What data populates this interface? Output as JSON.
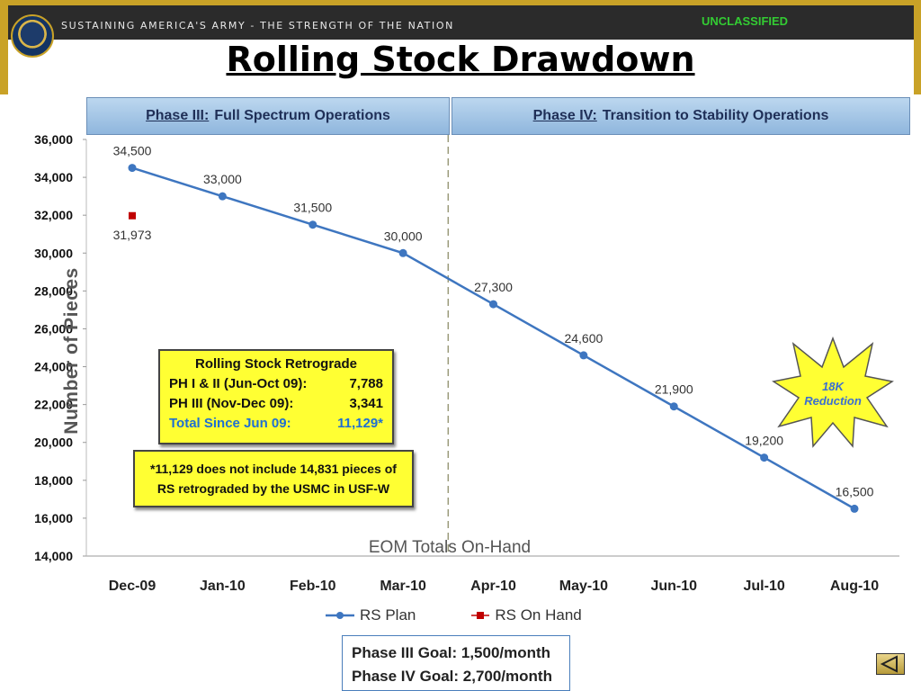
{
  "header": {
    "motto": "SUSTAINING AMERICA'S ARMY - THE STRENGTH OF THE NATION",
    "classification": "UNCLASSIFIED",
    "title": "Rolling Stock Drawdown"
  },
  "phases": [
    {
      "name": "Phase III:",
      "desc": "Full Spectrum Operations"
    },
    {
      "name": "Phase IV:",
      "desc": "Transition to Stability Operations"
    }
  ],
  "retrograde_box": {
    "heading": "Rolling Stock Retrograde",
    "rows": [
      {
        "label": "PH I & II (Jun-Oct 09):",
        "value": "7,788"
      },
      {
        "label": "PH III (Nov-Dec 09):",
        "value": "3,341"
      },
      {
        "label": "Total Since Jun 09:",
        "value": "11,129*"
      }
    ]
  },
  "footnote": "*11,129 does not include 14,831 pieces of RS retrograded by the USMC in USF-W",
  "starburst": "18K Reduction",
  "goals": [
    "Phase III Goal: 1,500/month",
    "Phase IV Goal: 2,700/month"
  ],
  "colors": {
    "plan": "#3e76c0",
    "onhand": "#c00000",
    "phase_fill": "#a9c8e8",
    "callout": "#ffff33",
    "star": "#ffff33"
  },
  "chart_data": {
    "type": "line",
    "xlabel": "EOM Totals On-Hand",
    "ylabel": "Number of Pieces",
    "ylim": [
      14000,
      36000
    ],
    "ytick_step": 2000,
    "y_tick_labels": [
      "14,000",
      "16,000",
      "18,000",
      "20,000",
      "22,000",
      "24,000",
      "26,000",
      "28,000",
      "30,000",
      "32,000",
      "34,000",
      "36,000"
    ],
    "categories": [
      "Dec-09",
      "Jan-10",
      "Feb-10",
      "Mar-10",
      "Apr-10",
      "May-10",
      "Jun-10",
      "Jul-10",
      "Aug-10"
    ],
    "series": [
      {
        "name": "RS Plan",
        "values": [
          34500,
          33000,
          31500,
          30000,
          27300,
          24600,
          21900,
          19200,
          16500
        ],
        "labels": [
          "34,500",
          "33,000",
          "31,500",
          "30,000",
          "27,300",
          "24,600",
          "21,900",
          "19,200",
          "16,500"
        ]
      },
      {
        "name": "RS On Hand",
        "values": [
          31973,
          null,
          null,
          null,
          null,
          null,
          null,
          null,
          null
        ],
        "labels": [
          "31,973",
          "",
          "",
          "",
          "",
          "",
          "",
          "",
          ""
        ]
      }
    ],
    "phase_divider_between": [
      "Mar-10",
      "Apr-10"
    ],
    "legend_position": "bottom"
  }
}
